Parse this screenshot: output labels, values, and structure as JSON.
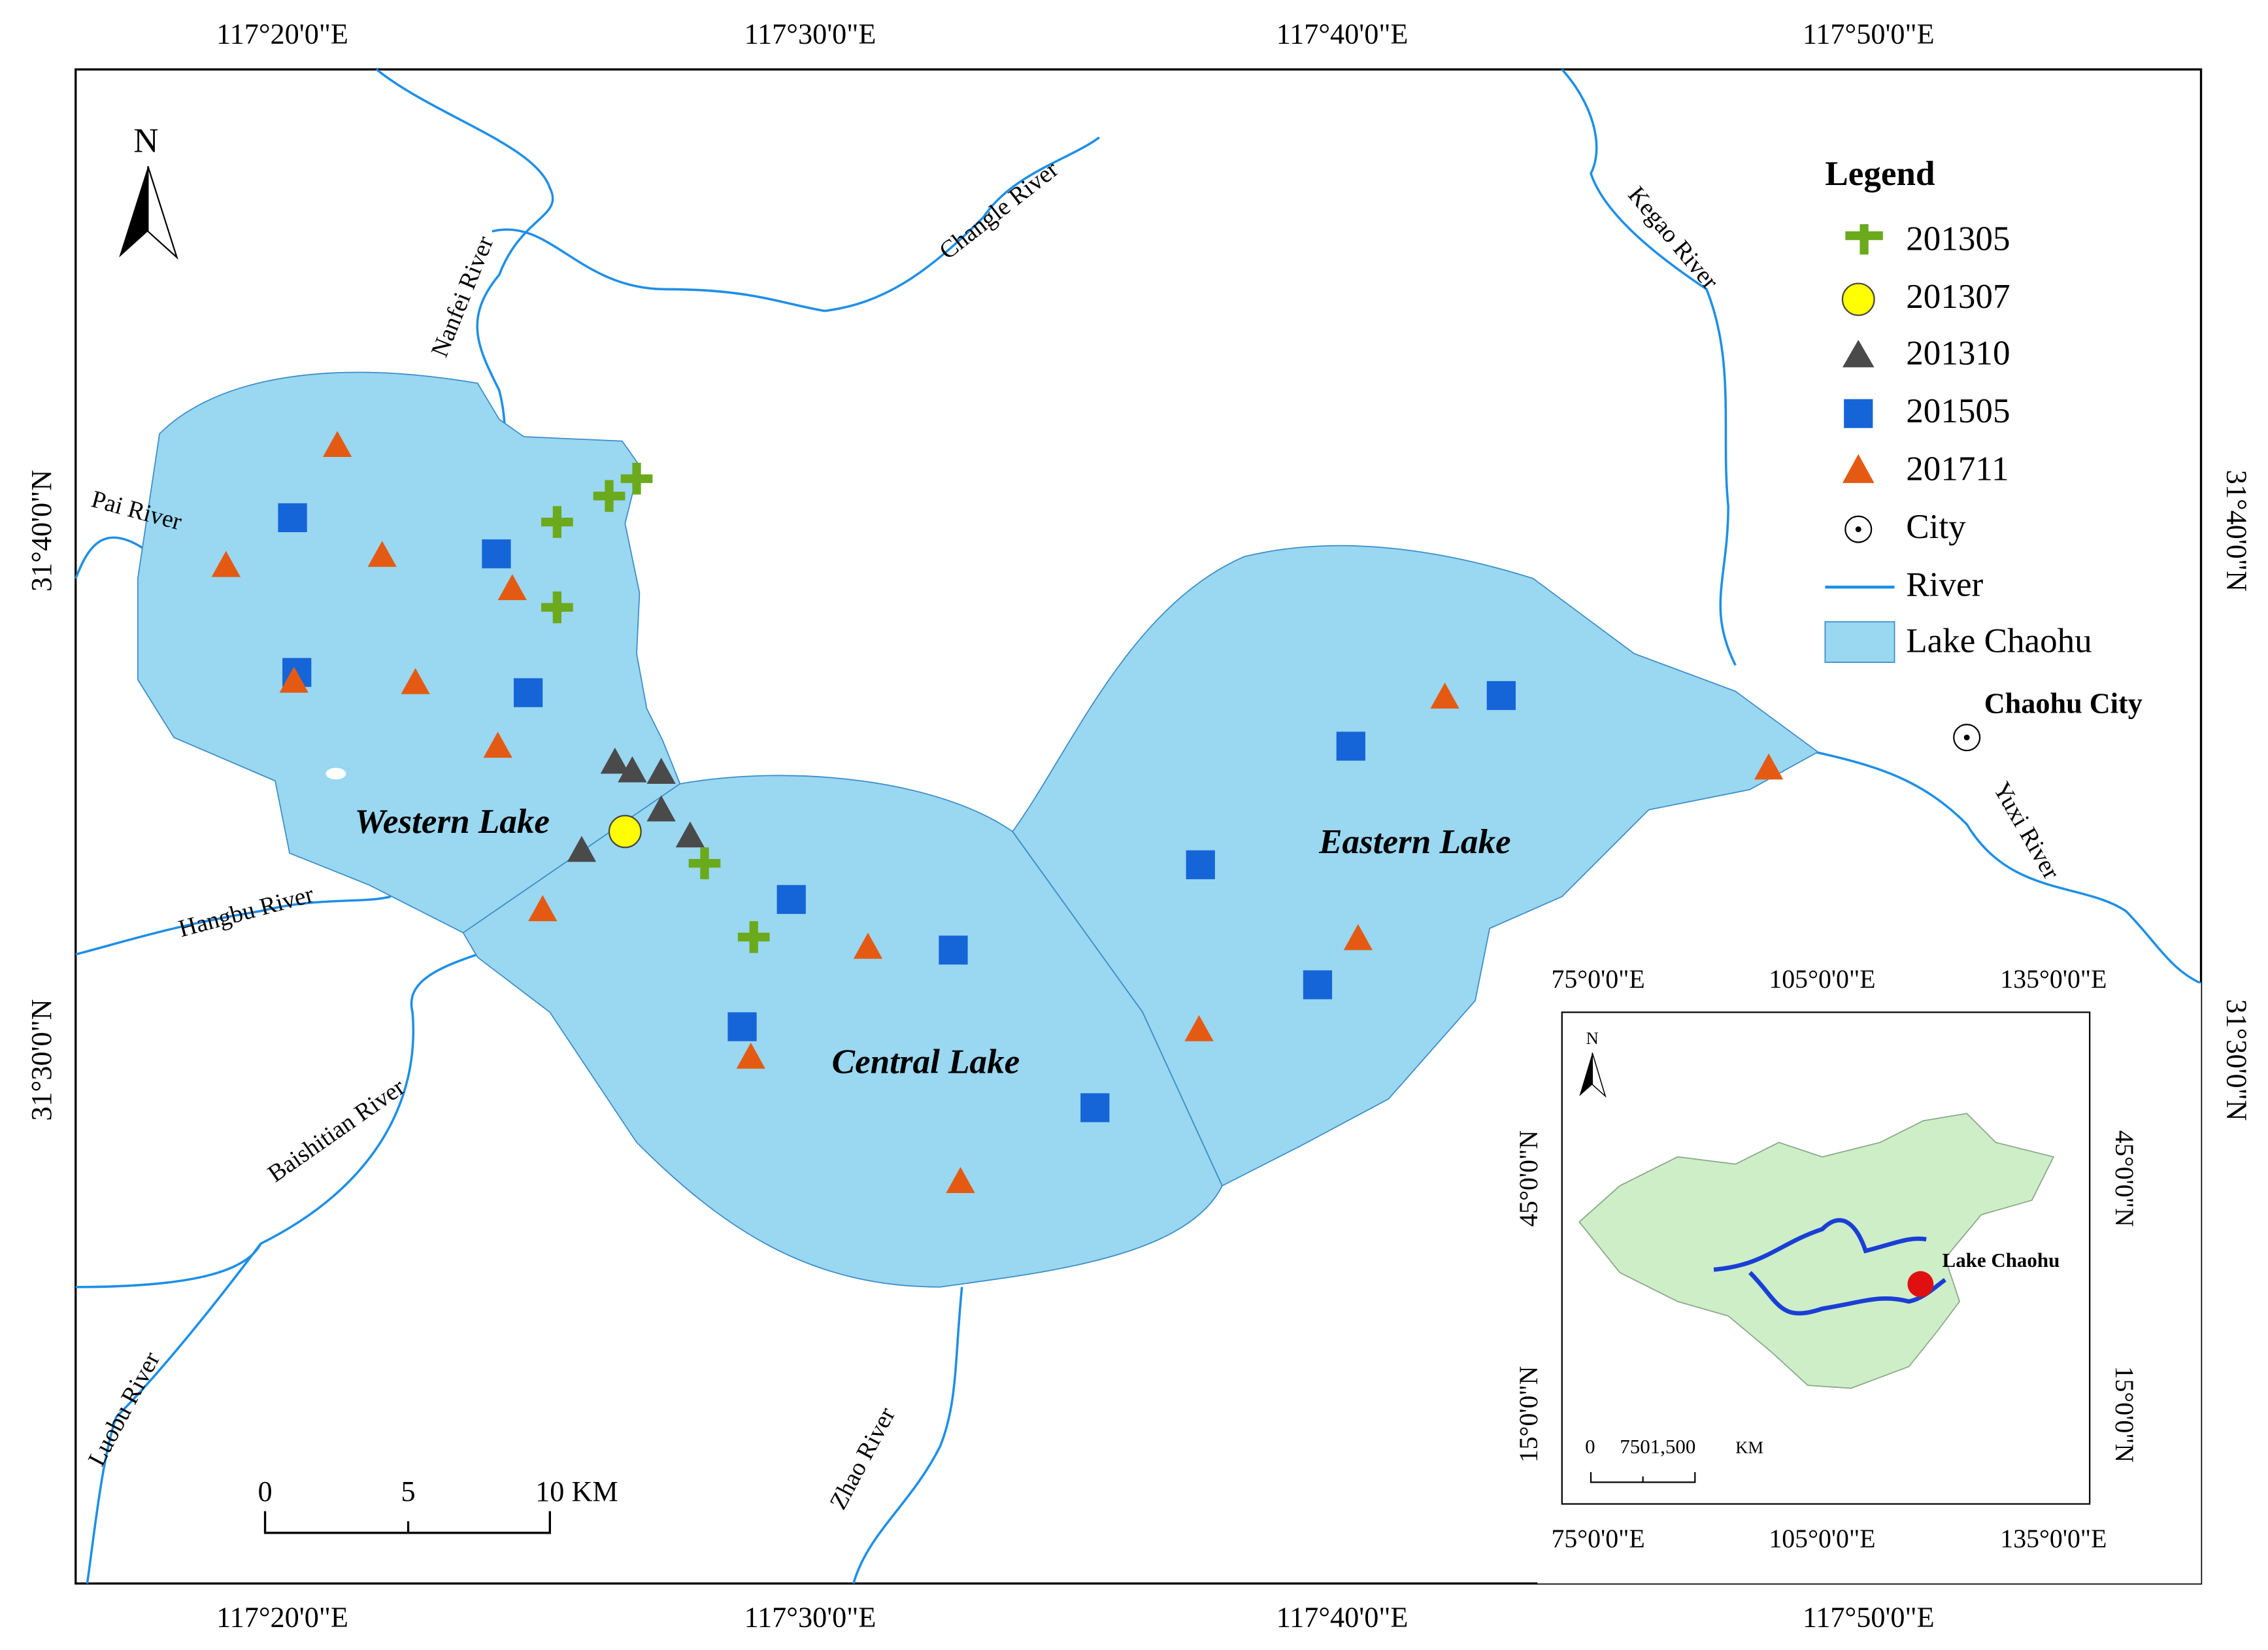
{
  "map": {
    "longitude_labels": [
      "117°20'0\"E",
      "117°30'0\"E",
      "117°40'0\"E",
      "117°50'0\"E"
    ],
    "latitude_labels": [
      "31°40'0\"N",
      "31°30'0\"N"
    ],
    "north": "N",
    "rivers": [
      "Nanfei River",
      "Changle River",
      "Kegao River",
      "Pai River",
      "Hangbu River",
      "Baishitian River",
      "Luobu River",
      "Zhao River",
      "Yuxi River"
    ],
    "lakes": [
      "Western Lake",
      "Central Lake",
      "Eastern Lake"
    ],
    "city": "Chaohu City",
    "legend": {
      "title": "Legend",
      "items": [
        "201305",
        "201307",
        "201310",
        "201505",
        "201711",
        "City",
        "River",
        "Lake Chaohu"
      ]
    },
    "scale_bar": [
      "0",
      "5",
      "10 KM"
    ],
    "inset": {
      "longitude_labels": [
        "75°0'0\"E",
        "105°0'0\"E",
        "135°0'0\"E"
      ],
      "latitude_labels": [
        "45°0'0\"N",
        "15°0'0\"N"
      ],
      "north": "N",
      "label": "Lake Chaohu",
      "scale_bar": [
        "0",
        "7501,500",
        "KM"
      ]
    }
  }
}
